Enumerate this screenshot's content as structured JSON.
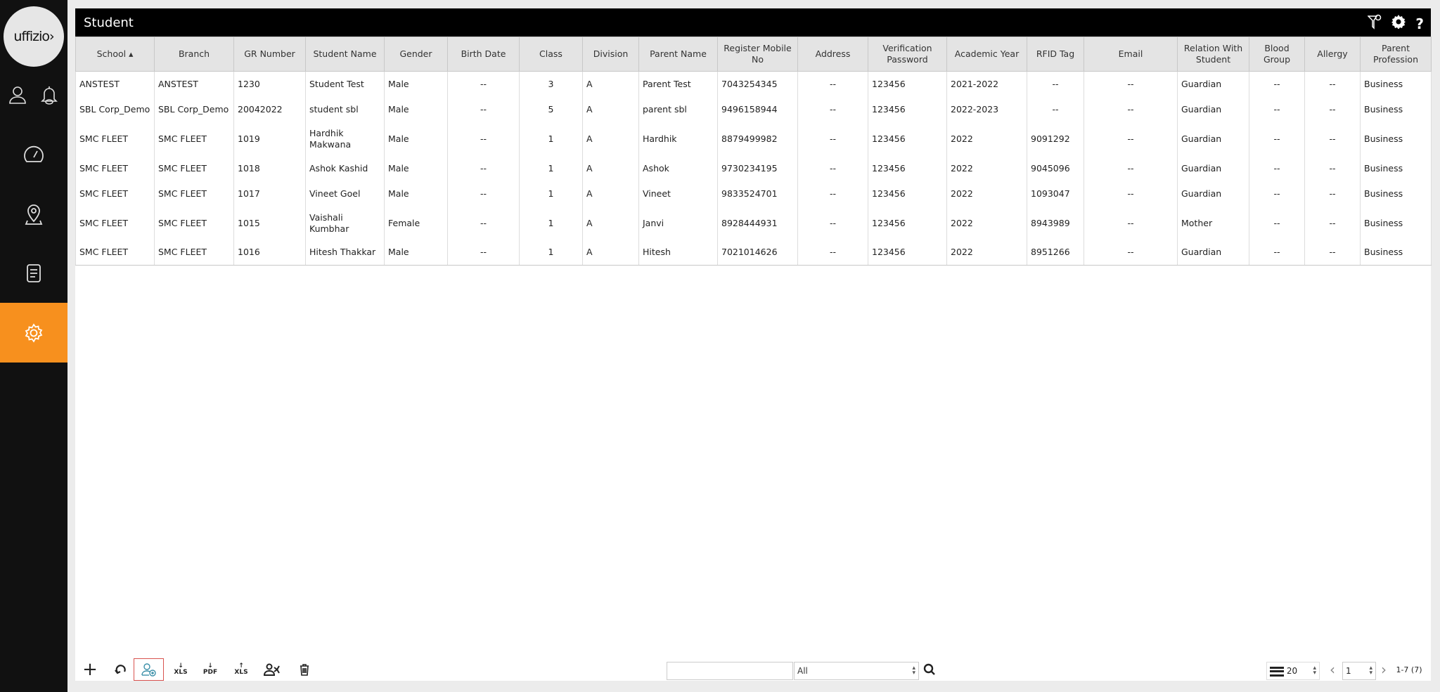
{
  "app": {
    "logo_text": "uffizio",
    "accent": "#f7901e"
  },
  "sidebar": {
    "items": [
      {
        "icon": "user-icon"
      },
      {
        "icon": "bell-icon"
      },
      {
        "icon": "dashboard-gauge-icon"
      },
      {
        "icon": "map-pin-icon"
      },
      {
        "icon": "report-document-icon"
      },
      {
        "icon": "settings-gear-icon",
        "active": true
      }
    ]
  },
  "header": {
    "title": "Student",
    "icons": [
      "filter-icon",
      "settings-icon",
      "help-icon"
    ],
    "help_label": "?"
  },
  "table": {
    "columns": [
      "School ▴",
      "Branch",
      "GR Number",
      "Student Name",
      "Gender",
      "Birth Date",
      "Class",
      "Division",
      "Parent Name",
      "Register Mobile No",
      "Address",
      "Verification Password",
      "Academic Year",
      "RFID Tag",
      "Email",
      "Relation With Student",
      "Blood Group",
      "Allergy",
      "Parent Profession"
    ],
    "sort": {
      "column": "School",
      "direction": "ascending"
    },
    "rows": [
      [
        "ANSTEST",
        "ANSTEST",
        "1230",
        "Student Test",
        "Male",
        "--",
        "3",
        "A",
        "Parent Test",
        "7043254345",
        "--",
        "123456",
        "2021-2022",
        "--",
        "--",
        "Guardian",
        "--",
        "--",
        "Business"
      ],
      [
        "SBL Corp_Demo",
        "SBL Corp_Demo",
        "20042022",
        "student sbl",
        "Male",
        "--",
        "5",
        "A",
        "parent sbl",
        "9496158944",
        "--",
        "123456",
        "2022-2023",
        "--",
        "--",
        "Guardian",
        "--",
        "--",
        "Business"
      ],
      [
        "SMC FLEET",
        "SMC FLEET",
        "1019",
        "Hardhik Makwana",
        "Male",
        "--",
        "1",
        "A",
        "Hardhik",
        "8879499982",
        "--",
        "123456",
        "2022",
        "9091292",
        "--",
        "Guardian",
        "--",
        "--",
        "Business"
      ],
      [
        "SMC FLEET",
        "SMC FLEET",
        "1018",
        "Ashok Kashid",
        "Male",
        "--",
        "1",
        "A",
        "Ashok",
        "9730234195",
        "--",
        "123456",
        "2022",
        "9045096",
        "--",
        "Guardian",
        "--",
        "--",
        "Business"
      ],
      [
        "SMC FLEET",
        "SMC FLEET",
        "1017",
        "Vineet Goel",
        "Male",
        "--",
        "1",
        "A",
        "Vineet",
        "9833524701",
        "--",
        "123456",
        "2022",
        "1093047",
        "--",
        "Guardian",
        "--",
        "--",
        "Business"
      ],
      [
        "SMC FLEET",
        "SMC FLEET",
        "1015",
        "Vaishali Kumbhar",
        "Female",
        "--",
        "1",
        "A",
        "Janvi",
        "8928444931",
        "--",
        "123456",
        "2022",
        "8943989",
        "--",
        "Mother",
        "--",
        "--",
        "Business"
      ],
      [
        "SMC FLEET",
        "SMC FLEET",
        "1016",
        "Hitesh Thakkar",
        "Male",
        "--",
        "1",
        "A",
        "Hitesh",
        "7021014626",
        "--",
        "123456",
        "2022",
        "8951266",
        "--",
        "Guardian",
        "--",
        "--",
        "Business"
      ]
    ]
  },
  "toolbar": {
    "buttons": [
      {
        "icon": "add-icon"
      },
      {
        "icon": "refresh-icon"
      },
      {
        "icon": "add-user-icon",
        "selected": true
      },
      {
        "icon": "download-xls-icon",
        "label": "XLS"
      },
      {
        "icon": "download-pdf-icon",
        "label": "PDF"
      },
      {
        "icon": "upload-xls-icon",
        "label": "XLS"
      },
      {
        "icon": "assign-user-icon"
      },
      {
        "icon": "delete-icon"
      }
    ],
    "search": {
      "value": "",
      "placeholder": ""
    },
    "filter": {
      "selected": "All"
    },
    "page_size": "20",
    "page": "1",
    "range": "1-7 (7)"
  }
}
